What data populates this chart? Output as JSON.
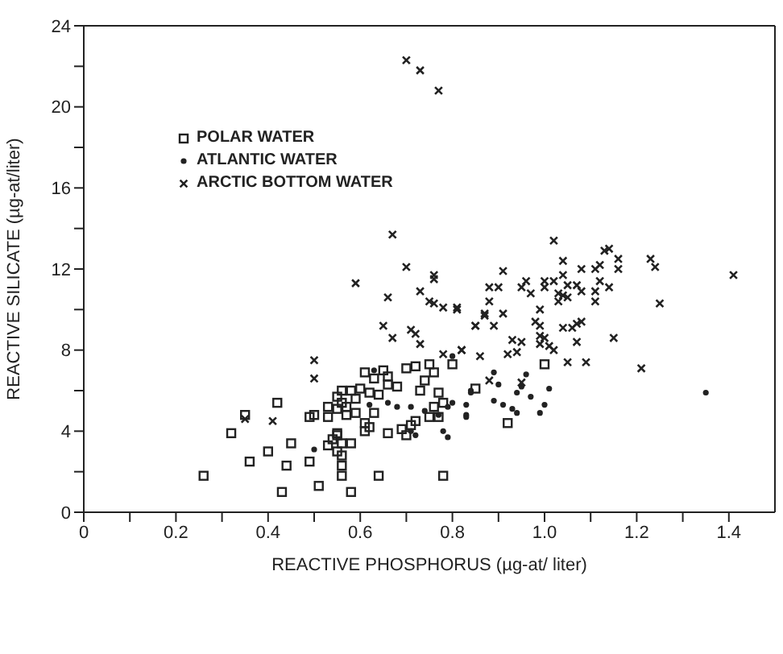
{
  "chart_data": {
    "type": "scatter",
    "xlabel": "REACTIVE PHOSPHORUS (µg-at/ liter)",
    "ylabel": "REACTIVE SILICATE (µg-at/liter)",
    "xlim": [
      0,
      1.5
    ],
    "ylim": [
      0,
      24
    ],
    "xticks": [
      0,
      {
        "value": 0.1,
        "label": null
      },
      0.2,
      {
        "value": 0.3,
        "label": null
      },
      0.4,
      {
        "value": 0.5,
        "label": null
      },
      0.6,
      {
        "value": 0.7,
        "label": null
      },
      0.8,
      {
        "value": 0.9,
        "label": null
      },
      {
        "value": 1,
        "label": "1.0"
      },
      {
        "value": 1.1,
        "label": null
      },
      1.2,
      {
        "value": 1.3,
        "label": null
      },
      1.4
    ],
    "yticks": [
      0,
      {
        "value": 2,
        "label": null
      },
      4,
      {
        "value": 6,
        "label": null
      },
      8,
      {
        "value": 10,
        "label": null
      },
      12,
      {
        "value": 14,
        "label": null
      },
      16,
      {
        "value": 18,
        "label": null
      },
      20,
      {
        "value": 22,
        "label": null
      },
      24
    ],
    "grid": false,
    "legend": "top left",
    "series": [
      {
        "name": "POLAR WATER",
        "color": "#222222",
        "marker": "square",
        "x": [
          0.26,
          0.32,
          0.35,
          0.36,
          0.4,
          0.42,
          0.43,
          0.44,
          0.45,
          0.49,
          0.49,
          0.5,
          0.51,
          0.53,
          0.53,
          0.55,
          0.56,
          0.56,
          0.55,
          0.58,
          0.6,
          0.61,
          0.63,
          0.65,
          0.66,
          0.68,
          0.7,
          0.72,
          0.75,
          0.76,
          0.74,
          0.73,
          0.77,
          0.8,
          0.85,
          0.57,
          0.59,
          0.61,
          0.62,
          0.61,
          0.63,
          0.57,
          0.66,
          0.69,
          0.7,
          0.71,
          0.72,
          0.75,
          0.76,
          0.77,
          0.78,
          0.53,
          0.54,
          0.55,
          0.56,
          0.55,
          0.56,
          0.58,
          0.55,
          0.56,
          0.56,
          0.58,
          0.64,
          0.78,
          0.64,
          0.66,
          0.59,
          0.62,
          0.92,
          1.0
        ],
        "values": [
          1.8,
          3.9,
          4.8,
          2.5,
          3.0,
          5.4,
          1.0,
          2.3,
          3.4,
          2.5,
          4.7,
          4.8,
          1.3,
          4.7,
          5.2,
          5.1,
          6.0,
          5.4,
          5.7,
          6.0,
          6.1,
          6.9,
          6.6,
          7.0,
          6.7,
          6.2,
          7.1,
          7.2,
          7.3,
          6.9,
          6.5,
          6.0,
          5.9,
          7.3,
          6.1,
          4.8,
          4.9,
          4.4,
          4.2,
          4.0,
          4.9,
          5.2,
          3.9,
          4.1,
          3.8,
          4.3,
          4.5,
          4.7,
          5.2,
          4.7,
          5.4,
          3.3,
          3.6,
          3.8,
          3.4,
          3.0,
          2.8,
          3.4,
          3.9,
          2.3,
          1.8,
          1.0,
          1.8,
          1.8,
          5.8,
          6.3,
          5.6,
          5.9,
          4.4,
          7.3
        ]
      },
      {
        "name": "ATLANTIC WATER",
        "color": "#222222",
        "marker": "circle",
        "x": [
          0.63,
          0.62,
          0.66,
          0.68,
          0.71,
          0.74,
          0.77,
          0.79,
          0.8,
          0.79,
          0.78,
          0.83,
          0.83,
          0.84,
          0.71,
          0.72,
          0.5,
          0.8,
          0.89,
          0.9,
          0.89,
          0.91,
          0.93,
          0.94,
          0.95,
          0.96,
          0.97,
          0.94,
          0.99,
          1.0,
          1.01,
          0.83,
          1.35,
          0.84
        ],
        "values": [
          7.0,
          5.3,
          5.4,
          5.2,
          5.2,
          5.0,
          4.8,
          5.2,
          5.4,
          3.7,
          4.0,
          4.7,
          5.3,
          5.9,
          4.0,
          3.8,
          3.1,
          7.7,
          6.9,
          6.3,
          5.5,
          5.3,
          5.1,
          5.9,
          6.2,
          6.8,
          5.7,
          4.9,
          4.9,
          5.3,
          6.1,
          4.8,
          5.9,
          6.0
        ]
      },
      {
        "name": "ARCTIC BOTTOM WATER",
        "color": "#222222",
        "marker": "cross",
        "x": [
          0.7,
          0.73,
          0.77,
          0.67,
          0.7,
          0.76,
          0.59,
          0.66,
          0.73,
          0.76,
          0.75,
          0.76,
          0.78,
          0.81,
          0.85,
          0.65,
          0.67,
          0.71,
          0.72,
          0.73,
          0.78,
          0.82,
          0.86,
          0.5,
          0.5,
          0.35,
          0.41,
          0.87,
          1.02,
          1.13,
          1.14,
          1.16,
          1.16,
          1.23,
          1.24,
          1.41,
          1.04,
          1.08,
          1.11,
          1.12,
          1.04,
          1.02,
          1.0,
          0.96,
          0.91,
          0.88,
          0.9,
          0.95,
          0.97,
          1.0,
          1.05,
          1.07,
          1.08,
          1.11,
          1.12,
          1.14,
          1.03,
          1.04,
          1.05,
          1.03,
          1.11,
          1.25,
          0.88,
          0.81,
          0.87,
          0.91,
          0.99,
          0.85,
          0.89,
          0.98,
          0.99,
          1.04,
          1.06,
          1.07,
          1.08,
          0.93,
          0.95,
          0.94,
          0.99,
          1.0,
          0.99,
          1.01,
          1.02,
          1.07,
          1.15,
          0.82,
          0.92,
          1.05,
          1.09,
          1.21,
          0.88,
          0.95
        ],
        "values": [
          22.3,
          21.8,
          20.8,
          13.7,
          12.1,
          11.7,
          11.3,
          10.6,
          10.9,
          11.5,
          10.4,
          10.3,
          10.1,
          10.1,
          9.2,
          9.2,
          8.6,
          9.0,
          8.8,
          8.3,
          7.8,
          8.0,
          7.7,
          7.5,
          6.6,
          4.6,
          4.5,
          9.7,
          13.4,
          12.9,
          13.0,
          12.5,
          12.0,
          12.5,
          12.1,
          11.7,
          12.4,
          12.0,
          12.0,
          12.2,
          11.7,
          11.4,
          11.4,
          11.4,
          11.9,
          11.1,
          11.1,
          11.1,
          10.8,
          11.1,
          11.2,
          11.2,
          10.9,
          10.9,
          11.4,
          11.1,
          10.8,
          10.7,
          10.6,
          10.4,
          10.4,
          10.3,
          10.4,
          10.0,
          9.8,
          9.8,
          10.0,
          9.2,
          9.2,
          9.4,
          9.2,
          9.1,
          9.1,
          9.3,
          9.4,
          8.5,
          8.4,
          7.9,
          8.7,
          8.6,
          8.3,
          8.2,
          8.0,
          8.4,
          8.6,
          8.0,
          7.8,
          7.4,
          7.4,
          7.1,
          6.5,
          6.4
        ]
      }
    ]
  }
}
